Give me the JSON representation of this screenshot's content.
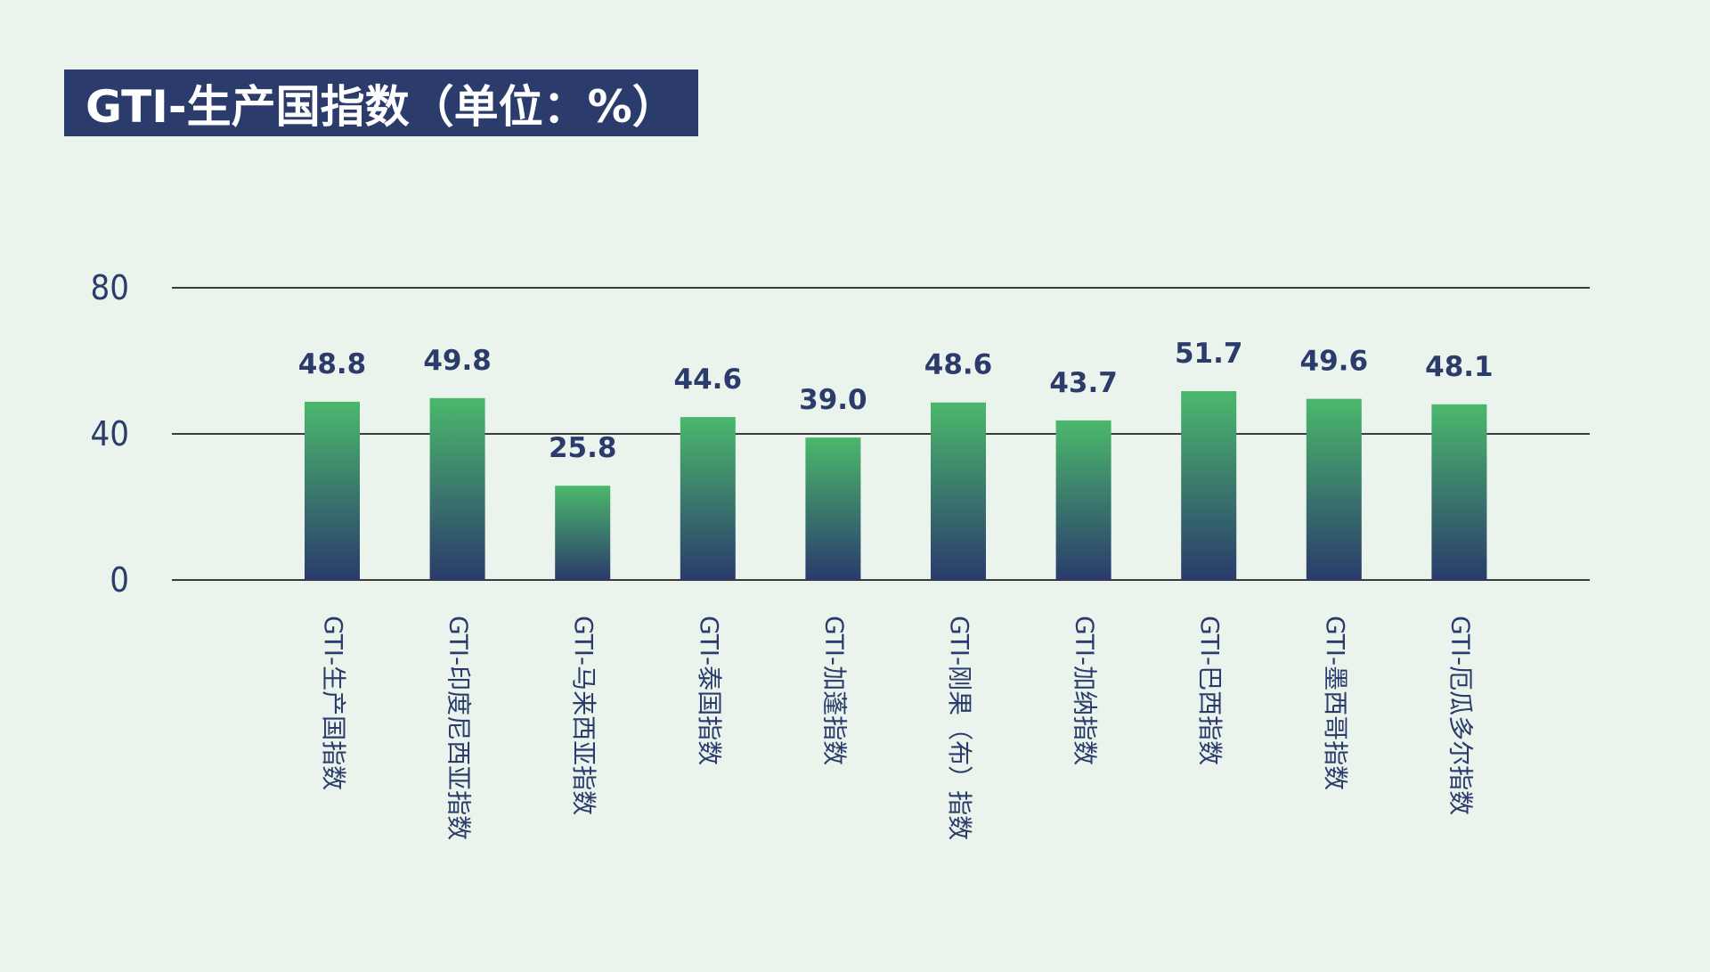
{
  "chart_data": {
    "type": "bar",
    "title": "GTI-生产国指数（单位：%）",
    "categories": [
      "GTI-生产国指数",
      "GTI-印度尼西亚指数",
      "GTI-马来西亚指数",
      "GTI-泰国指数",
      "GTI-加蓬指数",
      "GTI-刚果（布）指数",
      "GTI-加纳指数",
      "GTI-巴西指数",
      "GTI-墨西哥指数",
      "GTI-厄瓜多尔指数"
    ],
    "values": [
      48.8,
      49.8,
      25.8,
      44.6,
      39.0,
      48.6,
      43.7,
      51.7,
      49.6,
      48.1
    ],
    "value_labels": [
      "48.8",
      "49.8",
      "25.8",
      "44.6",
      "39.0",
      "48.6",
      "43.7",
      "51.7",
      "49.6",
      "48.1"
    ],
    "yticks": [
      "0",
      "40",
      "80"
    ],
    "ylim": [
      0,
      80
    ],
    "grid": true,
    "xlabel": "",
    "ylabel": "",
    "colors": {
      "bar_top": "#4bb86c",
      "bar_bottom": "#2a3b6c",
      "text": "#2a3b6c",
      "grid": "#3a3a3a",
      "background": "#ebf4ec"
    }
  }
}
